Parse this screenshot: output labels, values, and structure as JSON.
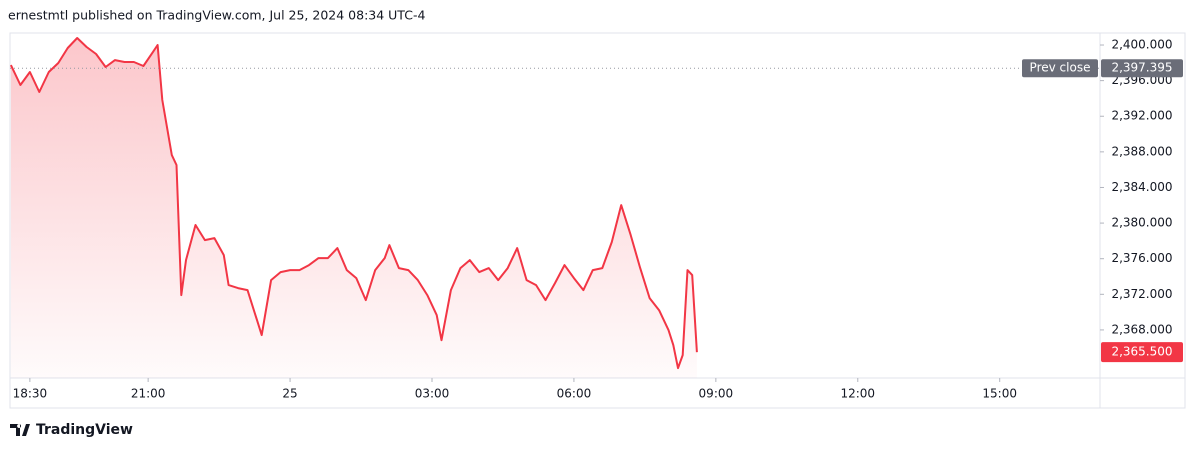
{
  "header": "ernestmtl published on TradingView.com, Jul 25, 2024 08:34 UTC-4",
  "brand": "TradingView",
  "chart_data": {
    "type": "area",
    "color": "#f23645",
    "x": [
      18.1,
      18.3,
      18.5,
      18.7,
      18.9,
      19.1,
      19.3,
      19.5,
      19.7,
      19.9,
      20.1,
      20.3,
      20.5,
      20.7,
      20.9,
      21.1,
      21.2,
      21.3,
      21.5,
      21.6,
      21.7,
      21.8,
      22.0,
      22.2,
      22.4,
      22.6,
      22.7,
      22.9,
      23.1,
      23.3,
      23.4,
      23.6,
      23.8,
      24.0,
      24.2,
      24.4,
      24.6,
      24.8,
      25.0,
      25.2,
      25.4,
      25.6,
      25.8,
      26.0,
      26.1,
      26.3,
      26.5,
      26.7,
      26.9,
      27.1,
      27.2,
      27.4,
      27.6,
      27.8,
      28.0,
      28.2,
      28.4,
      28.6,
      28.8,
      29.0,
      29.2,
      29.4,
      29.6,
      29.8,
      30.0,
      30.2,
      30.4,
      30.6,
      30.8,
      31.0,
      31.2,
      31.4,
      31.6,
      31.8,
      32.0,
      32.1,
      32.2,
      32.3,
      32.4,
      32.5,
      32.6
    ],
    "values": [
      2397.75,
      2395.51,
      2396.97,
      2394.72,
      2396.97,
      2397.98,
      2399.66,
      2400.79,
      2399.78,
      2398.99,
      2397.53,
      2398.31,
      2398.09,
      2398.09,
      2397.64,
      2399.21,
      2400.0,
      2393.82,
      2387.64,
      2386.52,
      2371.91,
      2375.84,
      2379.78,
      2378.09,
      2378.31,
      2376.4,
      2373.03,
      2372.7,
      2372.47,
      2369.1,
      2367.42,
      2373.6,
      2374.49,
      2374.72,
      2374.72,
      2375.28,
      2376.07,
      2376.07,
      2377.19,
      2374.72,
      2373.82,
      2371.35,
      2374.72,
      2376.07,
      2377.53,
      2374.94,
      2374.72,
      2373.6,
      2371.91,
      2369.66,
      2366.85,
      2372.47,
      2374.94,
      2375.84,
      2374.49,
      2374.94,
      2373.6,
      2374.94,
      2377.19,
      2373.6,
      2373.03,
      2371.35,
      2373.26,
      2375.28,
      2373.82,
      2372.47,
      2374.72,
      2374.94,
      2377.87,
      2382.02,
      2378.65,
      2374.94,
      2371.57,
      2370.22,
      2367.98,
      2366.29,
      2363.71,
      2365.17,
      2374.72,
      2374.16,
      2365.5
    ],
    "xlim": [
      18.08,
      41.12
    ],
    "ylim": [
      2362.6,
      2401.35
    ],
    "xticks": [
      {
        "value": 18.5,
        "label": "18:30"
      },
      {
        "value": 21,
        "label": "21:00"
      },
      {
        "value": 24,
        "label": "25"
      },
      {
        "value": 27,
        "label": "03:00"
      },
      {
        "value": 30,
        "label": "06:00"
      },
      {
        "value": 33,
        "label": "09:00"
      },
      {
        "value": 36,
        "label": "12:00"
      },
      {
        "value": 39,
        "label": "15:00"
      }
    ],
    "yticks": [
      {
        "value": 2368,
        "label": "2,368.000"
      },
      {
        "value": 2372,
        "label": "2,372.000"
      },
      {
        "value": 2376,
        "label": "2,376.000"
      },
      {
        "value": 2380,
        "label": "2,380.000"
      },
      {
        "value": 2384,
        "label": "2,384.000"
      },
      {
        "value": 2388,
        "label": "2,388.000"
      },
      {
        "value": 2392,
        "label": "2,392.000"
      },
      {
        "value": 2396,
        "label": "2,396.000"
      },
      {
        "value": 2400,
        "label": "2,400.000"
      }
    ],
    "prev_close": {
      "name": "Prev close",
      "value": 2397.395,
      "label": "2,397.395"
    },
    "last_price": {
      "value": 2365.5,
      "label": "2,365.500"
    }
  }
}
